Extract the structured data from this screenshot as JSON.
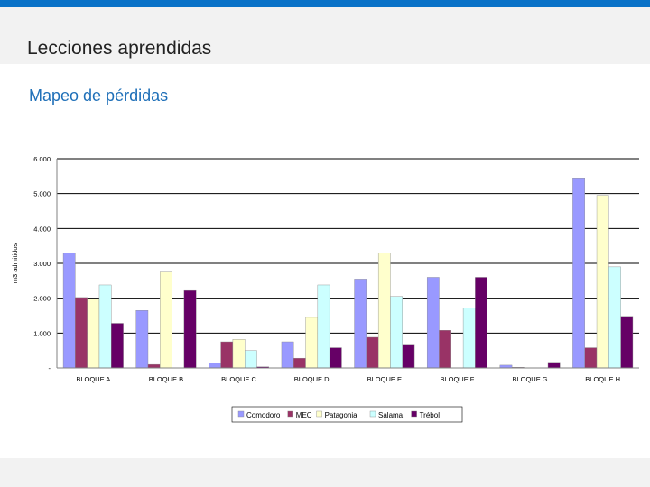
{
  "slide": {
    "title": "Lecciones aprendidas",
    "subtitle": "Mapeo de pérdidas"
  },
  "colors": {
    "topbar": "#0a72c8",
    "band": "#f2f2f2",
    "subtitle": "#1e6fb8"
  },
  "chart_data": {
    "type": "bar",
    "title": "",
    "xlabel": "",
    "ylabel": "m3 admitidos",
    "ylim": [
      0,
      6000
    ],
    "yticks": [
      0,
      1000,
      2000,
      3000,
      4000,
      5000,
      6000
    ],
    "ytick_labels": [
      "-",
      "1.000",
      "2.000",
      "3.000",
      "4.000",
      "5.000",
      "6.000"
    ],
    "gridlines": true,
    "legend_position": "bottom",
    "categories": [
      "BLOQUE A",
      "BLOQUE B",
      "BLOQUE C",
      "BLOQUE D",
      "BLOQUE E",
      "BLOQUE F",
      "BLOQUE G",
      "BLOQUE H"
    ],
    "series": [
      {
        "name": "Comodoro",
        "color": "#9999ff",
        "values": [
          3300,
          1650,
          150,
          750,
          2550,
          2600,
          80,
          5450
        ]
      },
      {
        "name": "MEC",
        "color": "#993366",
        "values": [
          2020,
          100,
          750,
          280,
          880,
          1080,
          20,
          580
        ]
      },
      {
        "name": "Patagonia",
        "color": "#ffffcc",
        "values": [
          1980,
          2750,
          820,
          1450,
          3300,
          0,
          0,
          4950
        ]
      },
      {
        "name": "Salama",
        "color": "#ccffff",
        "values": [
          2380,
          0,
          500,
          2380,
          2050,
          1720,
          0,
          2900
        ]
      },
      {
        "name": "Trébol",
        "color": "#660066",
        "values": [
          1280,
          2220,
          30,
          580,
          680,
          2600,
          160,
          1480
        ]
      }
    ]
  }
}
